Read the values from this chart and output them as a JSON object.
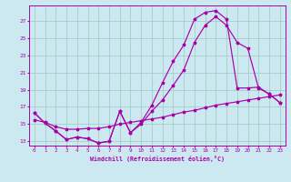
{
  "xlabel": "Windchill (Refroidissement éolien,°C)",
  "bg_color": "#cce8f0",
  "line_color": "#aa00aa",
  "grid_color": "#99ccbb",
  "x_values": [
    0,
    1,
    2,
    3,
    4,
    5,
    6,
    7,
    8,
    9,
    10,
    11,
    12,
    13,
    14,
    15,
    16,
    17,
    18,
    19,
    20,
    21,
    22,
    23
  ],
  "line_upper": [
    16.3,
    15.1,
    14.2,
    13.2,
    13.5,
    13.3,
    12.8,
    13.0,
    16.5,
    14.0,
    15.2,
    17.2,
    19.8,
    22.3,
    24.2,
    27.2,
    28.0,
    28.2,
    27.2,
    19.2,
    19.2,
    19.3,
    18.5,
    17.5
  ],
  "line_mid": [
    16.3,
    15.1,
    14.2,
    13.2,
    13.5,
    13.3,
    12.8,
    13.0,
    16.5,
    14.0,
    15.0,
    16.5,
    17.8,
    19.5,
    21.3,
    24.5,
    26.5,
    27.5,
    26.5,
    24.5,
    23.8,
    19.2,
    18.5,
    17.5
  ],
  "line_bottom": [
    15.5,
    15.2,
    14.7,
    14.4,
    14.4,
    14.5,
    14.5,
    14.7,
    15.0,
    15.2,
    15.4,
    15.6,
    15.8,
    16.1,
    16.4,
    16.6,
    16.9,
    17.2,
    17.4,
    17.6,
    17.8,
    18.0,
    18.2,
    18.4
  ],
  "ylim": [
    12.5,
    28.8
  ],
  "yticks": [
    13,
    15,
    17,
    19,
    21,
    23,
    25,
    27
  ],
  "xlim": [
    -0.5,
    23.5
  ]
}
